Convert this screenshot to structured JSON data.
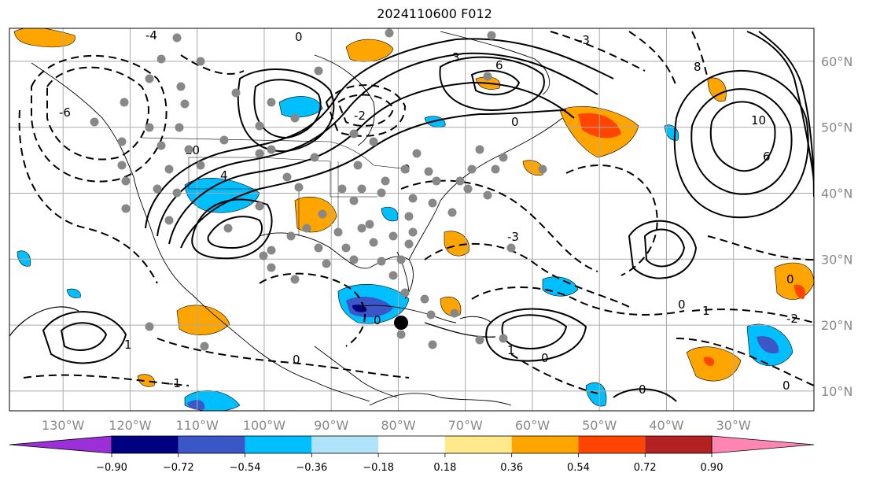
{
  "title": "2024110600 F012",
  "map": {
    "lon_labels": [
      "130°W",
      "120°W",
      "110°W",
      "100°W",
      "90°W",
      "80°W",
      "70°W",
      "60°W",
      "50°W",
      "40°W",
      "30°W"
    ],
    "lat_labels": [
      "60°N",
      "50°N",
      "40°N",
      "30°N",
      "20°N",
      "10°N"
    ],
    "lon_range": [
      -138,
      -18
    ],
    "lat_range": [
      7,
      65
    ],
    "gridlines": true,
    "contour_labels": [
      "-6",
      "-4",
      "-3",
      "-2",
      "-1",
      "0",
      "1",
      "3",
      "4",
      "6",
      "8",
      "10"
    ]
  },
  "colorbar": {
    "ticks": [
      "−0.90",
      "−0.72",
      "−0.54",
      "−0.36",
      "−0.18",
      "0.18",
      "0.36",
      "0.54",
      "0.72",
      "0.90"
    ],
    "colors": [
      "#9b30d9",
      "#000080",
      "#3a56c7",
      "#00bfff",
      "#aee3fa",
      "#ffffff",
      "#ffe98a",
      "#ffa500",
      "#ff4500",
      "#b22222",
      "#ff85b3"
    ],
    "extend": "both"
  },
  "markers": {
    "gray_dot_color": "#888888",
    "center_dot_color": "#000000"
  }
}
